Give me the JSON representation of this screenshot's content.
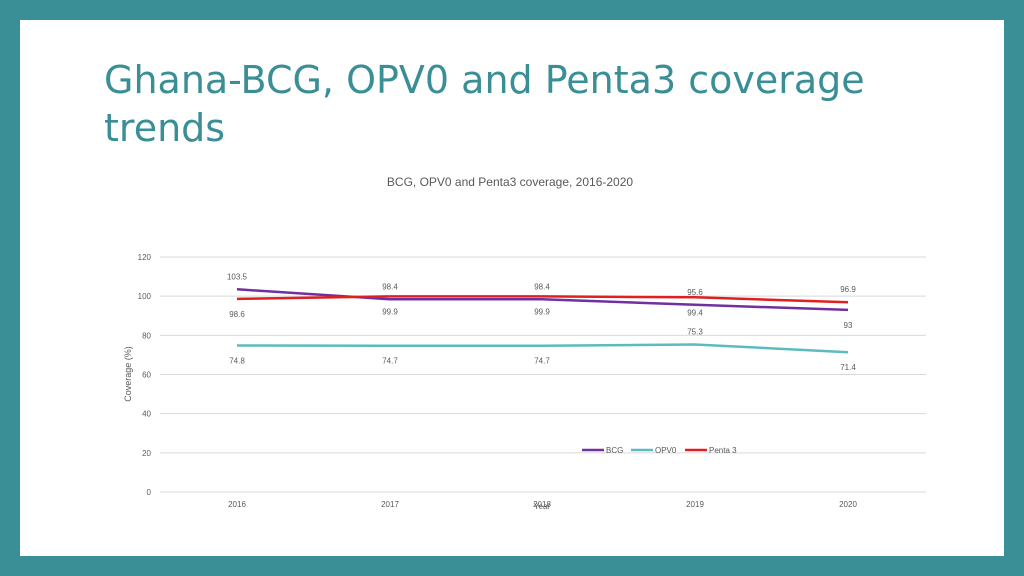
{
  "slide": {
    "title": "Ghana-BCG, OPV0 and Penta3 coverage trends"
  },
  "colors": {
    "background_frame": "#3a8f96",
    "title": "#3a8f96",
    "bcg": "#7030a0",
    "opv0": "#5bbcc0",
    "penta3": "#e02020",
    "grid": "#d9d9d9",
    "text": "#595959"
  },
  "chart_data": {
    "type": "line",
    "title": "BCG, OPV0 and Penta3 coverage, 2016-2020",
    "xlabel": "Year",
    "ylabel": "Coverage (%)",
    "categories": [
      "2016",
      "2017",
      "2018",
      "2019",
      "2020"
    ],
    "ylim": [
      0,
      120
    ],
    "yticks": [
      0,
      20,
      40,
      60,
      80,
      100,
      120
    ],
    "grid": true,
    "legend_position": "center-right",
    "series": [
      {
        "name": "BCG",
        "color": "#7030a0",
        "values": [
          103.5,
          98.4,
          98.4,
          95.6,
          93
        ],
        "labels": [
          "103.5",
          "98.4",
          "98.4",
          "95.6",
          "93"
        ]
      },
      {
        "name": "OPV0",
        "color": "#5bbcc0",
        "values": [
          74.8,
          74.7,
          74.7,
          75.3,
          71.4
        ],
        "labels": [
          "74.8",
          "74.7",
          "74.7",
          "75.3",
          "71.4"
        ]
      },
      {
        "name": "Penta 3",
        "color": "#e02020",
        "values": [
          98.6,
          99.9,
          99.9,
          99.4,
          96.9
        ],
        "labels": [
          "98.6",
          "99.9",
          "99.9",
          "99.4",
          "96.9"
        ]
      }
    ]
  }
}
